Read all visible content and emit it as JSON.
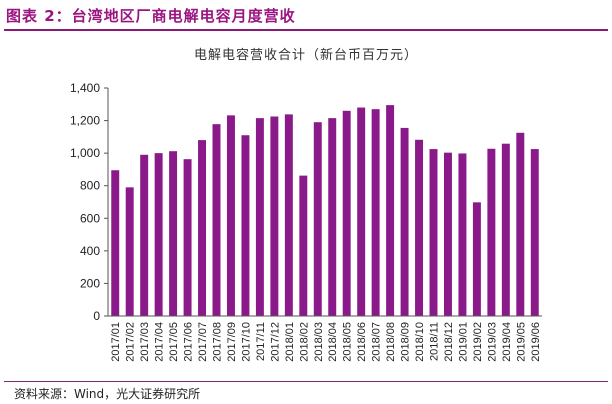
{
  "figure_title": "图表 2：台湾地区厂商电解电容月度营收",
  "source": "资料来源：Wind，光大证券研究所",
  "colors": {
    "bar": "#8a1a8a",
    "title": "#9b1580",
    "rule": "#8a1a78"
  },
  "chart_data": {
    "type": "bar",
    "title": "电解电容营收合计（新台币百万元）",
    "categories": [
      "2017/01",
      "2017/02",
      "2017/03",
      "2017/04",
      "2017/05",
      "2017/06",
      "2017/07",
      "2017/08",
      "2017/09",
      "2017/10",
      "2017/11",
      "2017/12",
      "2018/01",
      "2018/02",
      "2018/03",
      "2018/04",
      "2018/05",
      "2018/06",
      "2018/07",
      "2018/08",
      "2018/09",
      "2018/10",
      "2018/11",
      "2018/12",
      "2019/01",
      "2019/02",
      "2019/03",
      "2019/04",
      "2019/05",
      "2019/06"
    ],
    "values": [
      895,
      790,
      990,
      1000,
      1012,
      963,
      1080,
      1178,
      1232,
      1110,
      1215,
      1225,
      1238,
      862,
      1190,
      1215,
      1260,
      1280,
      1270,
      1295,
      1155,
      1082,
      1025,
      1003,
      998,
      698,
      1027,
      1058,
      1125,
      1025
    ],
    "yticks": [
      "0",
      "200",
      "400",
      "600",
      "800",
      "1,000",
      "1,200",
      "1,400"
    ],
    "ylim": [
      0,
      1400
    ],
    "grid": false,
    "legend": "none"
  }
}
